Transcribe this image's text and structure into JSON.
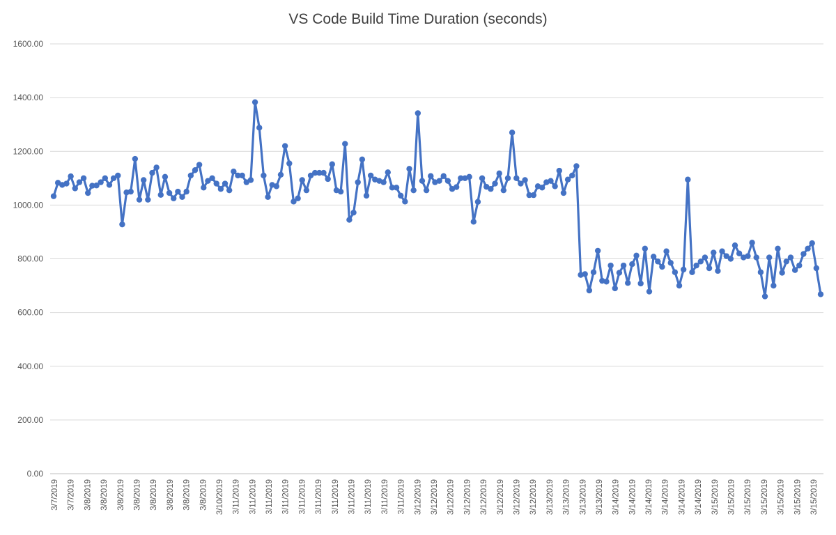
{
  "chart_data": {
    "type": "line",
    "title": "VS Code Build Time Duration (seconds)",
    "xlabel": "",
    "ylabel": "",
    "ylim": [
      0,
      1600
    ],
    "yticks": [
      "0.00",
      "200.00",
      "400.00",
      "600.00",
      "800.00",
      "1000.00",
      "1200.00",
      "1400.00",
      "1600.00"
    ],
    "grid": true,
    "legend": "none",
    "color": "#4472C4",
    "xtick_labels": [
      "3/7/2019",
      "3/7/2019",
      "3/8/2019",
      "3/8/2019",
      "3/8/2019",
      "3/8/2019",
      "3/8/2019",
      "3/8/2019",
      "3/8/2019",
      "3/8/2019",
      "3/10/2019",
      "3/11/2019",
      "3/11/2019",
      "3/11/2019",
      "3/11/2019",
      "3/11/2019",
      "3/11/2019",
      "3/11/2019",
      "3/11/2019",
      "3/11/2019",
      "3/11/2019",
      "3/11/2019",
      "3/12/2019",
      "3/12/2019",
      "3/12/2019",
      "3/12/2019",
      "3/12/2019",
      "3/12/2019",
      "3/12/2019",
      "3/12/2019",
      "3/13/2019",
      "3/13/2019",
      "3/13/2019",
      "3/13/2019",
      "3/14/2019",
      "3/14/2019",
      "3/14/2019",
      "3/14/2019",
      "3/14/2019",
      "3/14/2019",
      "3/15/2019",
      "3/15/2019",
      "3/15/2019",
      "3/15/2019",
      "3/15/2019",
      "3/15/2019",
      "3/15/2019"
    ],
    "series": [
      {
        "values": [
          1033,
          1083,
          1075,
          1080,
          1107,
          1062,
          1085,
          1100,
          1045,
          1072,
          1073,
          1085,
          1100,
          1075,
          1100,
          1110,
          928,
          1047,
          1050,
          1172,
          1020,
          1093,
          1020,
          1120,
          1140,
          1038,
          1105,
          1045,
          1025,
          1050,
          1030,
          1050,
          1110,
          1130,
          1150,
          1065,
          1090,
          1100,
          1080,
          1060,
          1080,
          1055,
          1125,
          1110,
          1110,
          1085,
          1093,
          1383,
          1288,
          1110,
          1030,
          1075,
          1070,
          1113,
          1220,
          1155,
          1013,
          1025,
          1093,
          1055,
          1110,
          1120,
          1120,
          1120,
          1097,
          1152,
          1055,
          1050,
          1228,
          945,
          972,
          1085,
          1170,
          1035,
          1110,
          1095,
          1090,
          1085,
          1122,
          1065,
          1065,
          1035,
          1013,
          1135,
          1055,
          1342,
          1090,
          1055,
          1108,
          1085,
          1090,
          1108,
          1090,
          1060,
          1067,
          1100,
          1100,
          1105,
          938,
          1012,
          1100,
          1068,
          1060,
          1080,
          1118,
          1055,
          1100,
          1270,
          1100,
          1080,
          1093,
          1037,
          1037,
          1070,
          1065,
          1085,
          1090,
          1070,
          1128,
          1045,
          1095,
          1110,
          1145,
          740,
          743,
          682,
          750,
          830,
          718,
          715,
          775,
          690,
          748,
          775,
          710,
          780,
          812,
          708,
          838,
          678,
          808,
          790,
          770,
          828,
          785,
          750,
          700,
          760,
          1095,
          750,
          775,
          790,
          805,
          765,
          823,
          755,
          828,
          810,
          800,
          850,
          820,
          805,
          810,
          860,
          805,
          750,
          660,
          805,
          700,
          838,
          748,
          790,
          805,
          758,
          775,
          818,
          838,
          858,
          765,
          668
        ]
      }
    ]
  }
}
